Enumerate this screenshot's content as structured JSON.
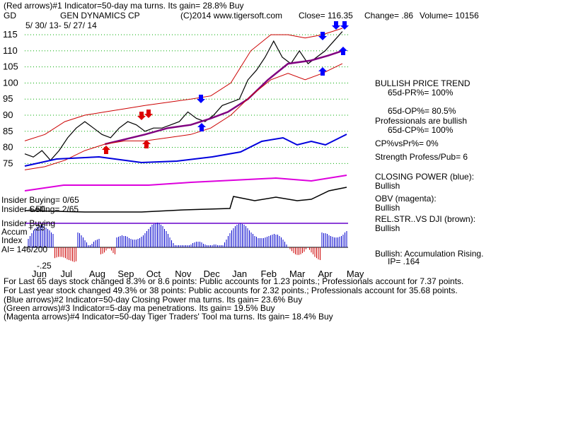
{
  "header": {
    "line1": "(Red arrows)#1 Indicator=50-day ma turns. Its gain= 28.8% Buy",
    "symbol": "GD",
    "company": "GEN DYNAMICS CP",
    "copyright": "(C)2014 www.tigersoft.com",
    "close": "Close=  116.35",
    "change": "Change= .86",
    "volume": "Volume= 10156",
    "date_range": "5/ 30/ 13- 5/ 27/ 14"
  },
  "chart_data": {
    "type": "line",
    "x_labels": [
      "Jun",
      "Jul",
      "Aug",
      "Sep",
      "Oct",
      "Nov",
      "Dec",
      "Jan",
      "Feb",
      "Mar",
      "Apr",
      "May"
    ],
    "price_axis": {
      "ticks": [
        "115",
        "110",
        "105",
        "100",
        "95",
        "90",
        "85",
        "80",
        "75"
      ],
      "ylim": [
        72,
        117
      ]
    },
    "series": [
      {
        "key": "price",
        "color": "#000000",
        "x": [
          0,
          0.3,
          0.6,
          0.9,
          1.2,
          1.5,
          1.8,
          2.1,
          2.4,
          2.7,
          3.0,
          3.3,
          3.6,
          3.9,
          4.2,
          4.5,
          4.8,
          5.1,
          5.4,
          5.7,
          6.0,
          6.3,
          6.6,
          6.9,
          7.2,
          7.5,
          7.8,
          8.1,
          8.4,
          8.7,
          9.0,
          9.3,
          9.6,
          9.9,
          10.2,
          10.5,
          10.8,
          11.1
        ],
        "y": [
          78,
          77,
          79,
          76,
          79,
          83,
          86,
          88,
          86,
          84,
          83,
          86,
          88,
          87,
          85,
          86,
          86,
          87,
          88,
          91,
          89,
          88,
          90,
          93,
          94,
          95,
          101,
          104,
          108,
          113,
          108,
          106,
          110,
          106,
          108,
          110,
          113,
          116
        ]
      },
      {
        "key": "ma50",
        "color": "#800080",
        "x": [
          2.8,
          3.5,
          4.2,
          5,
          5.8,
          6.5,
          7.1,
          7.8,
          8.5,
          9.2,
          10,
          10.6,
          11.1
        ],
        "y": [
          81,
          82.5,
          84,
          86,
          87,
          89,
          91,
          95,
          101,
          106,
          107,
          108.5,
          110
        ]
      },
      {
        "key": "upper_band",
        "color": "#cc0000",
        "x": [
          0,
          0.7,
          1.4,
          2.1,
          2.8,
          3.5,
          4.2,
          5,
          5.8,
          6.5,
          7.2,
          7.9,
          8.6,
          9.2,
          9.8,
          10.4,
          11.1
        ],
        "y": [
          82,
          84,
          88,
          90,
          91,
          92,
          93,
          94,
          95,
          96,
          100,
          110,
          115,
          115,
          114,
          115,
          117
        ]
      },
      {
        "key": "lower_band",
        "color": "#cc0000",
        "x": [
          0,
          0.7,
          1.4,
          2.1,
          2.8,
          3.5,
          4.2,
          5,
          5.8,
          6.5,
          7.2,
          7.9,
          8.6,
          9.2,
          9.8,
          10.4,
          11.1
        ],
        "y": [
          73,
          74,
          76,
          79,
          81,
          82,
          82,
          83,
          84,
          86,
          90,
          96,
          101,
          103,
          101,
          103,
          106
        ]
      }
    ],
    "accumulation_axis": {
      "ticks": [
        "+.50",
        "+.25",
        "-.25"
      ]
    }
  },
  "right_panel": {
    "trend": "BULLISH PRICE TREND",
    "pr65": "65d-PR%= 100%",
    "op65": "65d-OP%= 80.5%",
    "pros": "Professionals are bullish",
    "cp65": "65d-CP%= 100%",
    "cpvspr": "CP%vsPr%=  0%",
    "strength": "Strength Profess/Pub= 6",
    "closing_power_label": "CLOSING POWER (blue):",
    "closing_power_value": "Bullish",
    "obv_label": "OBV (magenta):",
    "obv_value": "Bullish",
    "relstr_label": "REL.STR..VS DJI (brown):",
    "relstr_value": "Bullish",
    "accum_label": "Bullish: Accumulation Rising.",
    "ip": "IP=  .164"
  },
  "left_labels": {
    "insider_buying": "Insider Buying= 0/65",
    "insider_selling": "Insider Selling= 2/65",
    "insider_buying2": "Insider Buying",
    "accum": "Accum",
    "index": "Index",
    "ai": "AI= 146/200"
  },
  "footer": {
    "line1": "For Last 65 days stock changed  8.3% or  8.6 points:  Public accounts for  1.23 points.;  Professionals account for  7.37 points.",
    "line2": "For Last year stock changed  49.3% or  38 points:  Public accounts for  2.32 points.;  Professionals account for  35.68 points.",
    "line3": "(Blue arrows)#2 Indicator=50-day Closing Power ma turns. Its gain= 23.6% Buy",
    "line4": "(Green arrows)#3 Indicator=5-day ma penetrations. Its gain= 19.5% Buy",
    "line5": "(Magenta arrows)#4 Indicator=50-day Tiger Traders' Tool ma turns. Its gain= 18.4% Buy"
  }
}
